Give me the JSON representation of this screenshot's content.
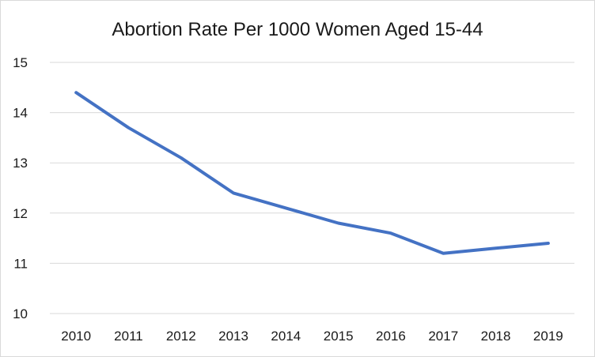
{
  "chart_data": {
    "type": "line",
    "title": "Abortion Rate Per 1000 Women Aged 15-44",
    "xlabel": "",
    "ylabel": "",
    "x": [
      "2010",
      "2011",
      "2012",
      "2013",
      "2014",
      "2015",
      "2016",
      "2017",
      "2018",
      "2019"
    ],
    "series": [
      {
        "values": [
          14.4,
          13.7,
          13.1,
          12.4,
          12.1,
          11.8,
          11.6,
          11.2,
          11.3,
          11.4
        ],
        "color": "#4472c4"
      }
    ],
    "ylim": [
      10,
      15
    ],
    "yticks": [
      "10",
      "11",
      "12",
      "13",
      "14",
      "15"
    ],
    "grid": true,
    "legend": "none",
    "gridline_color": "#d9d9d9",
    "text_color": "#1a1a1a",
    "background_color": "#ffffff"
  }
}
